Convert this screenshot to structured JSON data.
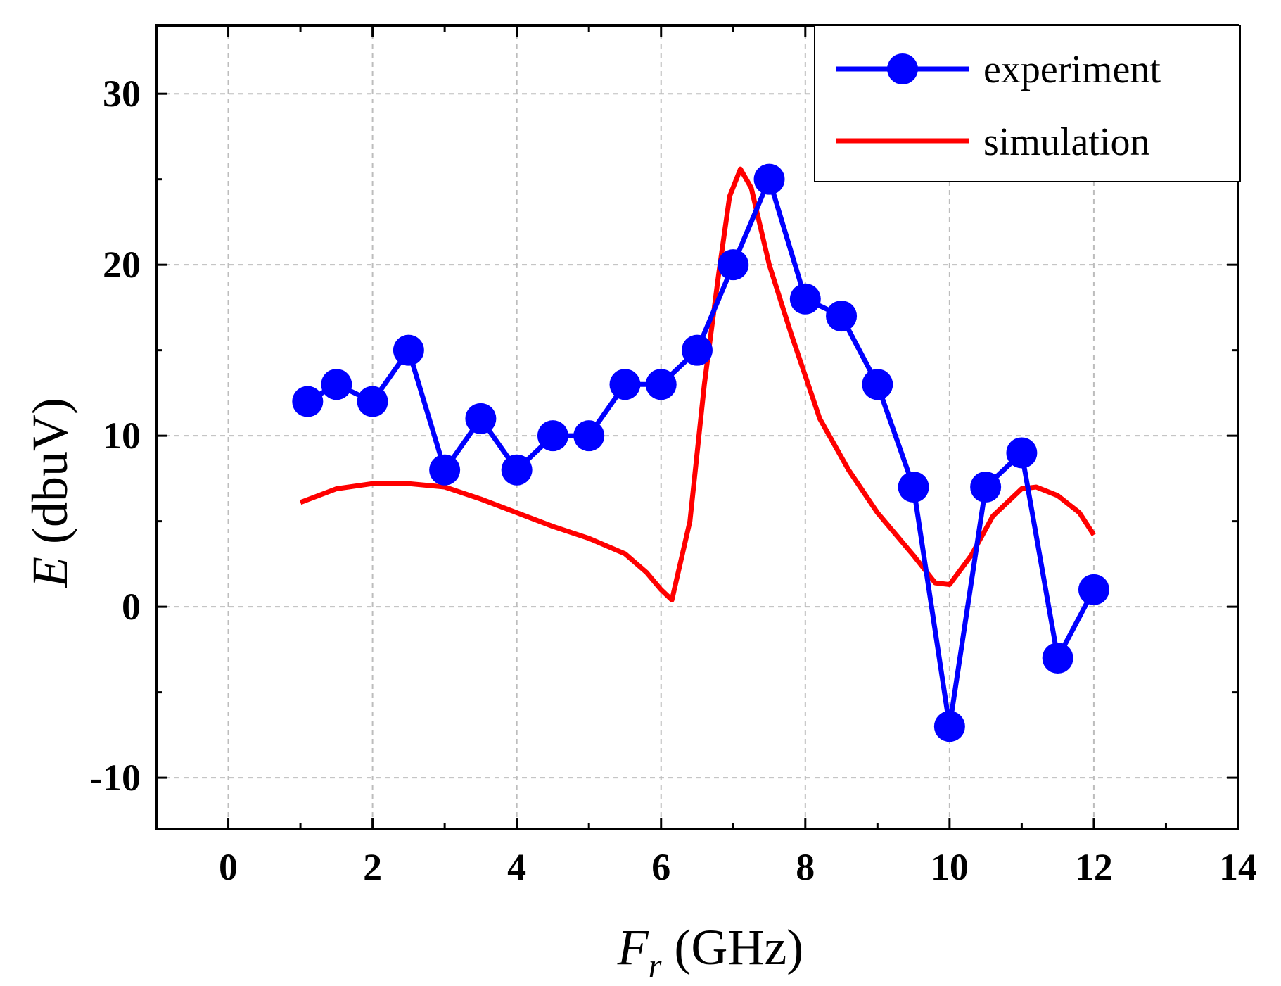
{
  "chart_data": {
    "type": "line",
    "title": "",
    "xlabel": {
      "symbol": "F",
      "subscript": "r",
      "unit": " (GHz)"
    },
    "ylabel": {
      "symbol": "E",
      "unit": " (dbuV)"
    },
    "xlim": [
      -1,
      14
    ],
    "ylim": [
      -13,
      34
    ],
    "x_ticks": [
      0,
      2,
      4,
      6,
      8,
      10,
      12,
      14
    ],
    "y_ticks": [
      -10,
      0,
      10,
      20,
      30
    ],
    "x_tick_labels": [
      "0",
      "2",
      "4",
      "6",
      "8",
      "10",
      "12",
      "14"
    ],
    "y_tick_labels": [
      "-10",
      "0",
      "10",
      "20",
      "30"
    ],
    "grid": true,
    "legend_position": "top-right",
    "series": [
      {
        "name": "experiment",
        "color": "#0000ff",
        "marker": "circle",
        "x": [
          1.1,
          1.5,
          2,
          2.5,
          3,
          3.5,
          4,
          4.5,
          5,
          5.5,
          6,
          6.5,
          7,
          7.5,
          8,
          8.5,
          9,
          9.5,
          10,
          10.5,
          11,
          11.5,
          12
        ],
        "y": [
          12,
          13,
          12,
          15,
          8,
          11,
          8,
          10,
          10,
          13,
          13,
          15,
          20,
          25,
          18,
          17,
          13,
          7,
          -7,
          7,
          9,
          -3,
          1
        ]
      },
      {
        "name": "simulation",
        "color": "#ff0000",
        "marker": "none",
        "x": [
          1.0,
          1.5,
          2.0,
          2.5,
          3.0,
          3.5,
          4.0,
          4.5,
          5.0,
          5.5,
          5.8,
          6.0,
          6.15,
          6.4,
          6.6,
          6.8,
          6.95,
          7.1,
          7.25,
          7.5,
          7.8,
          8.2,
          8.6,
          9.0,
          9.5,
          9.8,
          10.0,
          10.3,
          10.6,
          11.0,
          11.2,
          11.5,
          11.8,
          12.0
        ],
        "y": [
          6.1,
          6.9,
          7.2,
          7.2,
          7.0,
          6.3,
          5.5,
          4.7,
          4.0,
          3.1,
          2.0,
          1.0,
          0.4,
          5.0,
          13.0,
          19.5,
          24.0,
          25.6,
          24.5,
          20.0,
          16.0,
          11.0,
          8.0,
          5.5,
          3.0,
          1.4,
          1.3,
          3.0,
          5.3,
          6.9,
          7.0,
          6.5,
          5.5,
          4.2
        ]
      }
    ]
  }
}
